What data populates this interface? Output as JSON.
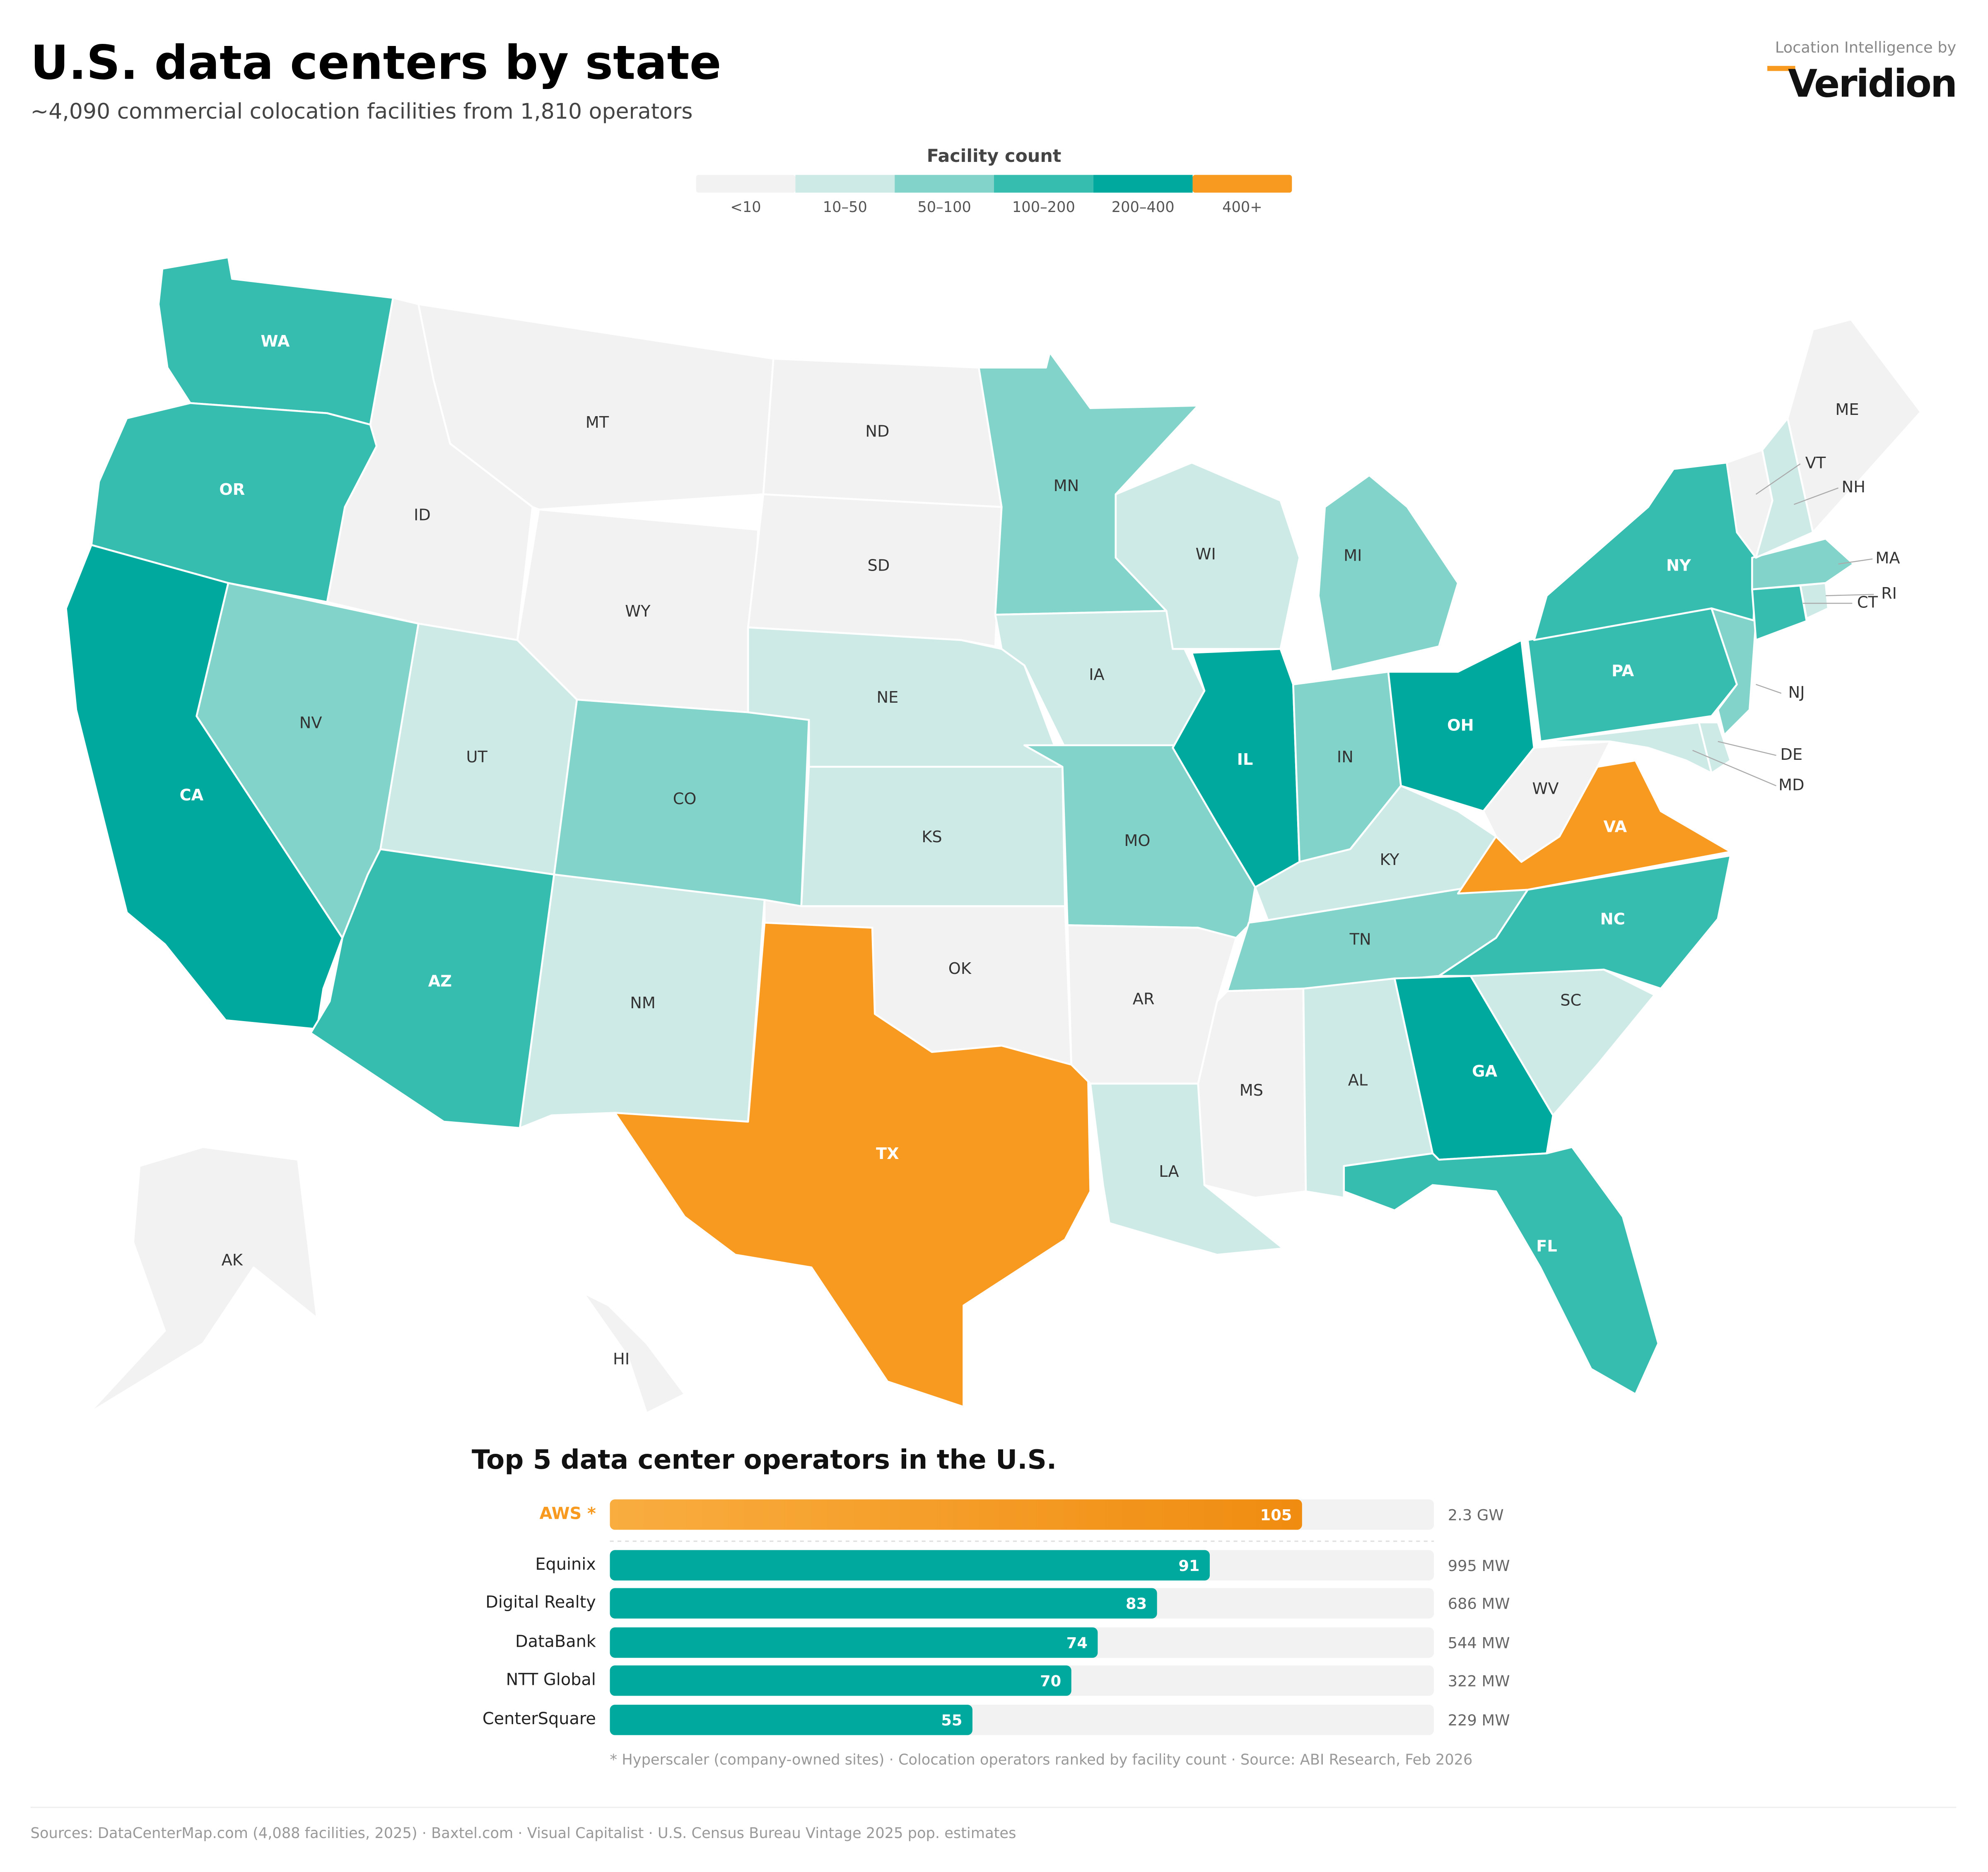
{
  "header": {
    "title": "U.S. data centers by state",
    "subtitle": "~4,090 commercial colocation facilities from 1,810 operators",
    "brand_caption": "Location Intelligence by",
    "brand": "Veridion"
  },
  "legend": {
    "title": "Facility count",
    "bins": [
      {
        "label": "<10",
        "color": "#f2f2f2"
      },
      {
        "label": "10–50",
        "color": "#cdeae7"
      },
      {
        "label": "50–100",
        "color": "#82d3ca"
      },
      {
        "label": "100–200",
        "color": "#37bdb0"
      },
      {
        "label": "200–400",
        "color": "#00a99d"
      },
      {
        "label": "400+",
        "color": "#f79a1f"
      }
    ]
  },
  "map": {
    "states": [
      {
        "code": "WA",
        "bin": 3
      },
      {
        "code": "OR",
        "bin": 3
      },
      {
        "code": "CA",
        "bin": 4
      },
      {
        "code": "NV",
        "bin": 2
      },
      {
        "code": "ID",
        "bin": 0
      },
      {
        "code": "MT",
        "bin": 0
      },
      {
        "code": "WY",
        "bin": 0
      },
      {
        "code": "UT",
        "bin": 1
      },
      {
        "code": "CO",
        "bin": 2
      },
      {
        "code": "AZ",
        "bin": 3
      },
      {
        "code": "NM",
        "bin": 1
      },
      {
        "code": "ND",
        "bin": 0
      },
      {
        "code": "SD",
        "bin": 0
      },
      {
        "code": "NE",
        "bin": 1
      },
      {
        "code": "KS",
        "bin": 1
      },
      {
        "code": "OK",
        "bin": 0
      },
      {
        "code": "TX",
        "bin": 5
      },
      {
        "code": "MN",
        "bin": 2
      },
      {
        "code": "IA",
        "bin": 1
      },
      {
        "code": "MO",
        "bin": 2
      },
      {
        "code": "AR",
        "bin": 0
      },
      {
        "code": "LA",
        "bin": 1
      },
      {
        "code": "WI",
        "bin": 1
      },
      {
        "code": "IL",
        "bin": 4
      },
      {
        "code": "MI",
        "bin": 2
      },
      {
        "code": "IN",
        "bin": 2
      },
      {
        "code": "OH",
        "bin": 4
      },
      {
        "code": "KY",
        "bin": 1
      },
      {
        "code": "TN",
        "bin": 2
      },
      {
        "code": "MS",
        "bin": 0
      },
      {
        "code": "AL",
        "bin": 1
      },
      {
        "code": "GA",
        "bin": 4
      },
      {
        "code": "FL",
        "bin": 3
      },
      {
        "code": "SC",
        "bin": 1
      },
      {
        "code": "NC",
        "bin": 3
      },
      {
        "code": "VA",
        "bin": 5
      },
      {
        "code": "WV",
        "bin": 0
      },
      {
        "code": "PA",
        "bin": 3
      },
      {
        "code": "NY",
        "bin": 3
      },
      {
        "code": "NJ",
        "bin": 2
      },
      {
        "code": "DE",
        "bin": 1
      },
      {
        "code": "MD",
        "bin": 1
      },
      {
        "code": "CT",
        "bin": 3
      },
      {
        "code": "RI",
        "bin": 1
      },
      {
        "code": "MA",
        "bin": 2
      },
      {
        "code": "VT",
        "bin": 0
      },
      {
        "code": "NH",
        "bin": 1
      },
      {
        "code": "ME",
        "bin": 0
      },
      {
        "code": "AK",
        "bin": 0
      },
      {
        "code": "HI",
        "bin": 0
      }
    ]
  },
  "chart_data": {
    "type": "bar",
    "orientation": "horizontal",
    "title": "Top 5 data center operators in the U.S.",
    "categories": [
      "AWS *",
      "Equinix",
      "Digital Realty",
      "DataBank",
      "NTT Global",
      "CenterSquare"
    ],
    "values": [
      105,
      91,
      83,
      74,
      70,
      55
    ],
    "capacity": [
      "2.3 GW",
      "995 MW",
      "686 MW",
      "544 MW",
      "322 MW",
      "229 MW"
    ],
    "colors": [
      "#f79a1f",
      "#00a99d",
      "#00a99d",
      "#00a99d",
      "#00a99d",
      "#00a99d"
    ],
    "xlim": [
      0,
      125
    ],
    "note": "* Hyperscaler (company-owned sites) · Colocation operators ranked by facility count · Source: ABI Research, Feb 2026"
  },
  "footer": {
    "sources": "Sources: DataCenterMap.com (4,088 facilities, 2025) · Baxtel.com · Visual Capitalist · U.S. Census Bureau Vintage 2025 pop. estimates"
  }
}
